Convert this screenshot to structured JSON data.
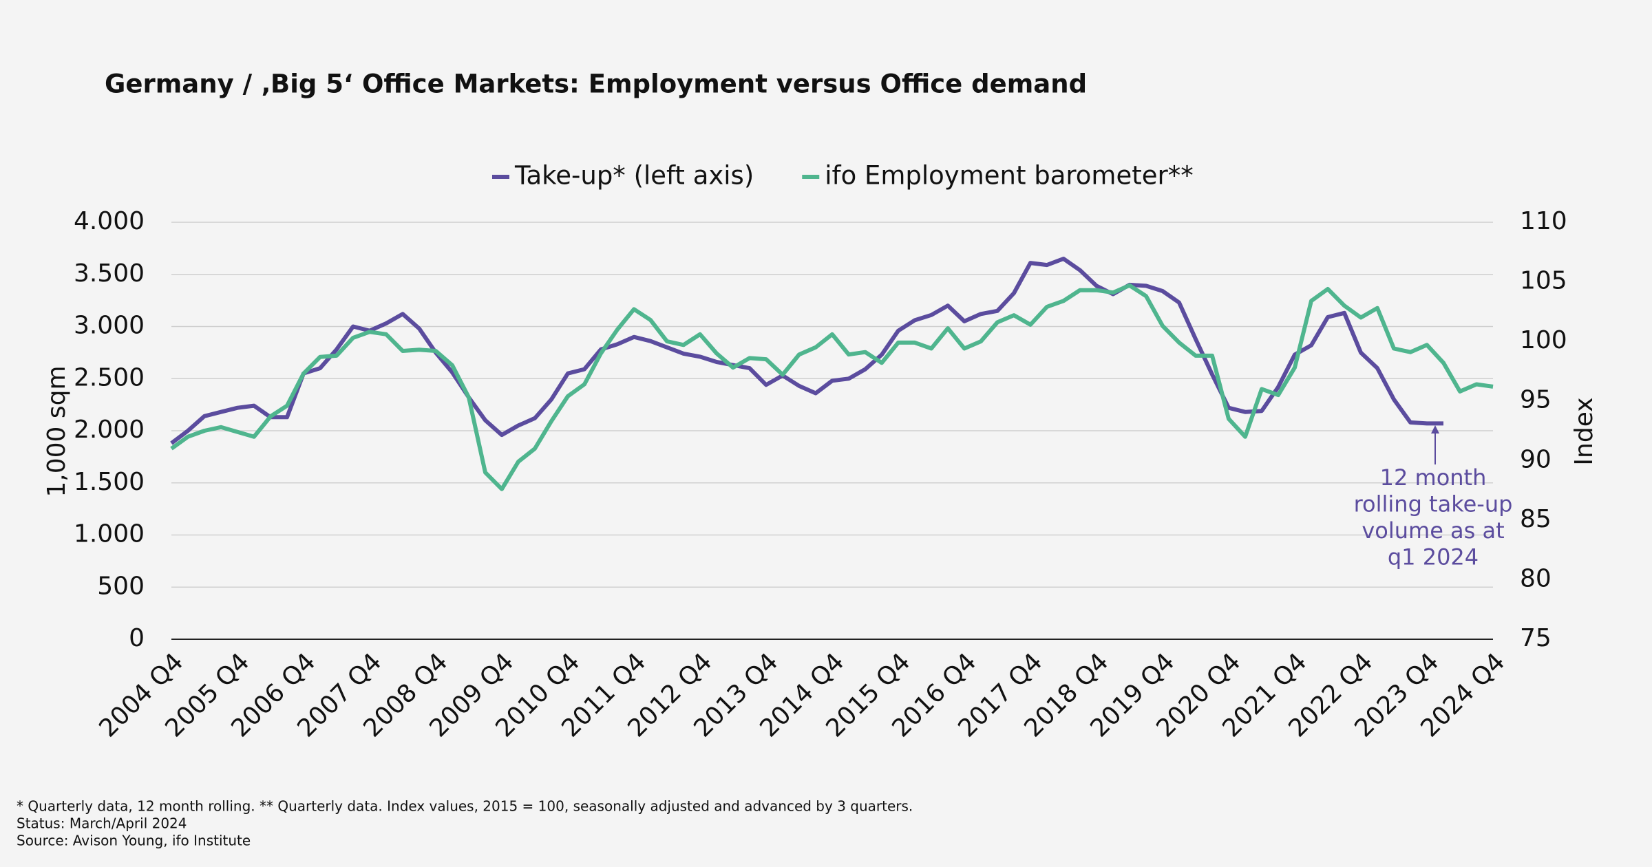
{
  "chart_data": {
    "type": "line",
    "title": "Germany / ‚Big 5‘ Office Markets: Employment versus Office demand",
    "ylabel": "1,000 sqm",
    "y2label": "Index",
    "categories": [
      "2004 Q4",
      null,
      null,
      null,
      "2005 Q4",
      null,
      null,
      null,
      "2006 Q4",
      null,
      null,
      null,
      "2007 Q4",
      null,
      null,
      null,
      "2008 Q4",
      null,
      null,
      null,
      "2009 Q4",
      null,
      null,
      null,
      "2010 Q4",
      null,
      null,
      null,
      "2011 Q4",
      null,
      null,
      null,
      "2012 Q4",
      null,
      null,
      null,
      "2013 Q4",
      null,
      null,
      null,
      "2014 Q4",
      null,
      null,
      null,
      "2015 Q4",
      null,
      null,
      null,
      "2016 Q4",
      null,
      null,
      null,
      "2017 Q4",
      null,
      null,
      null,
      "2018 Q4",
      null,
      null,
      null,
      "2019 Q4",
      null,
      null,
      null,
      "2020 Q4",
      null,
      null,
      null,
      "2021 Q4",
      null,
      null,
      null,
      "2022 Q4",
      null,
      null,
      null,
      "2023 Q4",
      null,
      null,
      null,
      "2024 Q4"
    ],
    "series": [
      {
        "name": "Take-up* (left axis)",
        "color": "#5b4c9e",
        "values": [
          1880,
          2000,
          2140,
          2180,
          2220,
          2240,
          2130,
          2130,
          2550,
          2600,
          2780,
          3000,
          2960,
          3030,
          3120,
          2980,
          2750,
          2560,
          2320,
          2100,
          1960,
          2050,
          2120,
          2300,
          2550,
          2590,
          2780,
          2830,
          2900,
          2860,
          2800,
          2740,
          2710,
          2660,
          2630,
          2600,
          2440,
          2530,
          2430,
          2360,
          2480,
          2500,
          2590,
          2730,
          2960,
          3060,
          3110,
          3200,
          3050,
          3120,
          3150,
          3320,
          3610,
          3590,
          3650,
          3540,
          3390,
          3310,
          3400,
          3390,
          3340,
          3230,
          2880,
          2540,
          2220,
          2180,
          2190,
          2420,
          2730,
          2820,
          3090,
          3130,
          2750,
          2600,
          2300,
          2080,
          2070,
          2070,
          null,
          null,
          null
        ]
      },
      {
        "name": "ifo Employment barometer**",
        "color": "#4fb58e",
        "axis": "y2",
        "values": [
          91.0,
          92.0,
          92.5,
          92.8,
          92.4,
          92.0,
          93.7,
          94.6,
          97.3,
          98.7,
          98.8,
          100.3,
          100.8,
          100.6,
          99.2,
          99.3,
          99.2,
          98.0,
          95.3,
          89.0,
          87.6,
          89.9,
          91.0,
          93.3,
          95.4,
          96.4,
          99.0,
          101.0,
          102.7,
          101.8,
          100.0,
          99.7,
          100.6,
          99.0,
          97.8,
          98.6,
          98.5,
          97.2,
          98.9,
          99.5,
          100.6,
          98.9,
          99.1,
          98.2,
          99.9,
          99.9,
          99.4,
          101.1,
          99.4,
          100.0,
          101.6,
          102.2,
          101.4,
          102.9,
          103.4,
          104.3,
          104.3,
          104.1,
          104.7,
          103.8,
          101.3,
          99.9,
          98.8,
          98.8,
          93.5,
          92.0,
          96.0,
          95.5,
          97.8,
          103.4,
          104.4,
          103.0,
          102.0,
          102.8,
          99.4,
          99.1,
          99.7,
          98.2,
          95.8,
          96.4,
          96.2
        ]
      }
    ],
    "ylim": [
      0,
      4000
    ],
    "yticks": [
      0,
      500,
      {
        "value": 1000,
        "label": "1.000"
      },
      {
        "value": 1500,
        "label": "1.500"
      },
      {
        "value": 2000,
        "label": "2.000"
      },
      {
        "value": 2500,
        "label": "2.500"
      },
      {
        "value": 3000,
        "label": "3.000"
      },
      {
        "value": 3500,
        "label": "3.500"
      },
      {
        "value": 4000,
        "label": "4.000"
      }
    ],
    "y2lim": [
      75,
      110
    ],
    "y2ticks": [
      75,
      80,
      85,
      90,
      95,
      100,
      105,
      110
    ],
    "grid": true,
    "legend": "top",
    "annotation": [
      "12 month",
      "rolling take-up",
      "volume as at",
      "q1 2024"
    ],
    "footnotes": [
      "* Quarterly data, 12 month rolling. ** Quarterly data. Index values, 2015 = 100, seasonally adjusted and advanced by 3 quarters.",
      "Status: March/April 2024",
      "Source: Avison Young, ifo Institute"
    ]
  }
}
